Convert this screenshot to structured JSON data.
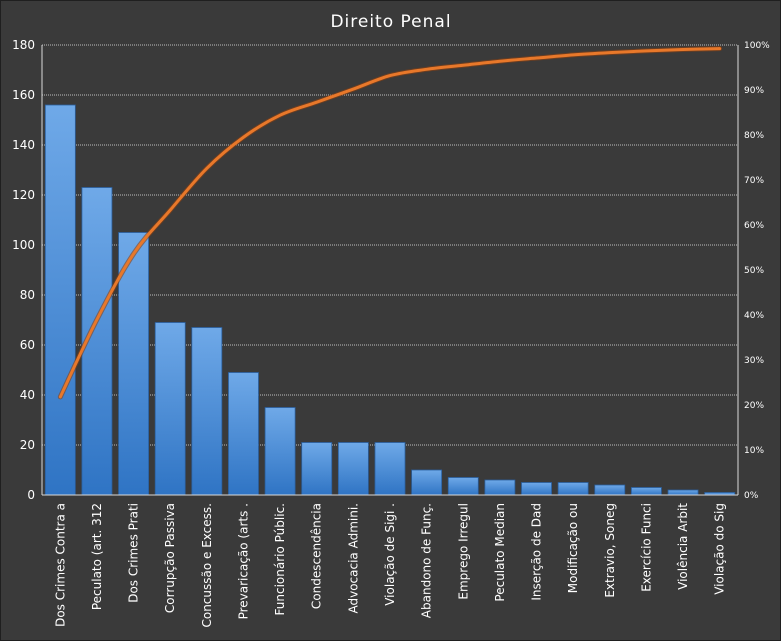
{
  "chart_data": {
    "type": "bar",
    "title": "Direito Penal",
    "xlabel": "",
    "ylabel": "",
    "ylim": [
      0,
      180
    ],
    "yticks": [
      0,
      20,
      40,
      60,
      80,
      100,
      120,
      140,
      160,
      180
    ],
    "y2lim": [
      0,
      100
    ],
    "y2ticks": [
      "0%",
      "10%",
      "20%",
      "30%",
      "40%",
      "50%",
      "60%",
      "70%",
      "80%",
      "90%",
      "100%"
    ],
    "grid": true,
    "categories": [
      "Dos Crimes Contra a",
      "Peculato (art. 312",
      "Dos Crimes Prati",
      "Corrupção Passiva",
      "Concussão e Excess.",
      "Prevaricação (arts .",
      "Funcionário Públic.",
      "Condescendência",
      "Advocacia Admini.",
      "Violação de Sigi .",
      "Abandono de Funç.",
      "Emprego Irregul",
      "Peculato Median",
      "Inserção de Dad",
      "Modificação ou",
      "Extravio, Soneg",
      "Exercício Funci",
      "Violência Arbit",
      "Violação do Sig"
    ],
    "series": [
      {
        "type": "bar",
        "color": "#4a90d9",
        "values": [
          156,
          123,
          105,
          69,
          67,
          49,
          35,
          21,
          21,
          21,
          10,
          7,
          6,
          5,
          5,
          4,
          3,
          2,
          1
        ]
      },
      {
        "type": "line",
        "axis": "right",
        "color": "#e8782a",
        "values": [
          21.8,
          39.0,
          53.6,
          63.3,
          72.6,
          79.5,
          84.4,
          87.3,
          90.2,
          93.2,
          94.6,
          95.5,
          96.4,
          97.1,
          97.8,
          98.3,
          98.7,
          99.0,
          99.2
        ]
      }
    ],
    "colors": {
      "background": "#3a3a3a",
      "grid": "#bfbfbf",
      "bar": "#4a90d9",
      "line": "#e8782a"
    }
  }
}
